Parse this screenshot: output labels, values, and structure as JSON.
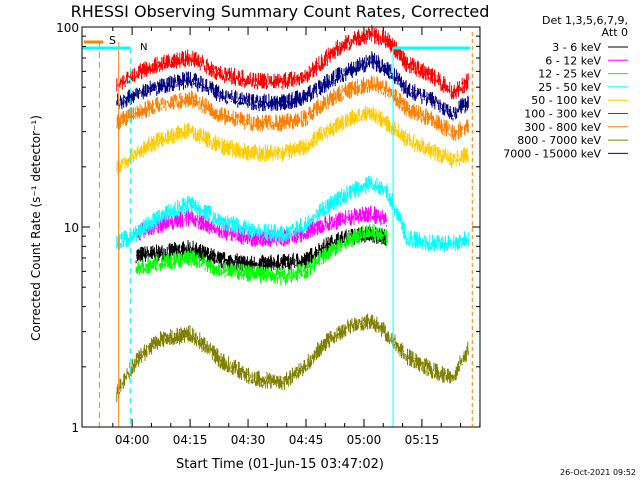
{
  "chart_data": {
    "type": "line",
    "title": "RHESSI Observing Summary Count Rates, Corrected",
    "xlabel": "Start Time (01-Jun-15 03:47:02)",
    "ylabel": "Corrected Count Rate (s⁻¹ detector⁻¹)",
    "yscale": "log",
    "ylim": [
      1,
      100
    ],
    "xlim_min": [
      0,
      103
    ],
    "x_unit": "minutes after 03:47:02",
    "xticks": [
      {
        "min": 12.97,
        "label": "04:00"
      },
      {
        "min": 27.97,
        "label": "04:15"
      },
      {
        "min": 42.97,
        "label": "04:30"
      },
      {
        "min": 57.97,
        "label": "04:45"
      },
      {
        "min": 72.97,
        "label": "05:00"
      },
      {
        "min": 87.97,
        "label": "05:15"
      }
    ],
    "yticks": [
      {
        "v": 1,
        "label": "1"
      },
      {
        "v": 10,
        "label": "10"
      },
      {
        "v": 100,
        "label": "100"
      }
    ],
    "legend": {
      "position": "right",
      "header": [
        "Det 1,3,5,6,7,9,",
        "Att 0"
      ]
    },
    "series": [
      {
        "name": "3 - 6 keV",
        "color": "#000000",
        "x": [
          14,
          20,
          28,
          36,
          44,
          52,
          58,
          62,
          66,
          70,
          75,
          79
        ],
        "y": [
          7.4,
          7.6,
          8.0,
          7.0,
          6.7,
          6.8,
          7.0,
          8.0,
          8.8,
          9.2,
          9.5,
          9.0
        ]
      },
      {
        "name": "6 - 12 keV",
        "color": "#ff00ff",
        "x": [
          14,
          20,
          28,
          36,
          44,
          52,
          58,
          62,
          66,
          70,
          75,
          79
        ],
        "y": [
          9.5,
          10.5,
          11.5,
          9.8,
          9.0,
          9.0,
          9.6,
          10.5,
          11.0,
          11.5,
          12.0,
          11.0
        ]
      },
      {
        "name": "12 - 25 keV",
        "color": "#00ff00",
        "x": [
          14,
          20,
          28,
          36,
          44,
          52,
          58,
          62,
          66,
          70,
          75,
          79
        ],
        "y": [
          6.3,
          6.8,
          7.2,
          6.3,
          6.0,
          5.8,
          6.2,
          7.2,
          8.2,
          9.0,
          9.8,
          9.0
        ]
      },
      {
        "name": "25 - 50 keV",
        "color": "#00ffff",
        "x": [
          9,
          14,
          20,
          28,
          36,
          44,
          52,
          58,
          62,
          66,
          70,
          75,
          79,
          84,
          90,
          96,
          100
        ],
        "y": [
          8.5,
          9.5,
          11.5,
          13.5,
          11.0,
          9.8,
          9.5,
          10.5,
          12.5,
          14.0,
          15.5,
          17.0,
          15.5,
          9.0,
          8.5,
          8.5,
          9.0
        ]
      },
      {
        "name": "50 - 100 keV",
        "color": "#ffcc00",
        "x": [
          9,
          14,
          20,
          28,
          36,
          44,
          52,
          58,
          62,
          66,
          70,
          75,
          79,
          84,
          90,
          96,
          100
        ],
        "y": [
          20,
          24,
          28,
          31,
          26,
          24,
          24,
          26,
          30,
          33,
          36,
          38,
          34,
          28,
          25,
          22,
          24
        ]
      },
      {
        "name": "100 - 300 keV",
        "color": "#ff0000",
        "x": [
          9,
          14,
          20,
          28,
          36,
          44,
          52,
          58,
          62,
          66,
          70,
          75,
          79,
          84,
          90,
          96,
          100
        ],
        "y": [
          53,
          60,
          67,
          72,
          60,
          55,
          55,
          58,
          68,
          80,
          88,
          95,
          88,
          67,
          60,
          48,
          55
        ]
      },
      {
        "name": "300 - 800 keV",
        "color": "#ff8000",
        "x": [
          9,
          14,
          20,
          28,
          36,
          44,
          52,
          58,
          62,
          66,
          70,
          75,
          79,
          84,
          90,
          96,
          100
        ],
        "y": [
          34,
          38,
          42,
          45,
          37,
          34,
          34,
          36,
          42,
          47,
          50,
          54,
          50,
          40,
          36,
          30,
          33
        ]
      },
      {
        "name": "800 - 7000 keV",
        "color": "#808000",
        "x": [
          9,
          14,
          20,
          28,
          36,
          44,
          52,
          58,
          62,
          66,
          70,
          75,
          79,
          84,
          90,
          96,
          100
        ],
        "y": [
          1.5,
          2.2,
          2.8,
          3.0,
          2.2,
          1.8,
          1.7,
          2.1,
          2.6,
          3.0,
          3.3,
          3.5,
          3.0,
          2.3,
          2.0,
          1.8,
          2.5
        ]
      },
      {
        "name": "7000 - 15000 keV",
        "color": "#000080",
        "x": [
          9,
          14,
          20,
          28,
          36,
          44,
          52,
          58,
          62,
          66,
          70,
          75,
          79,
          84,
          90,
          96,
          100
        ],
        "y": [
          43,
          47,
          52,
          56,
          47,
          43,
          43,
          46,
          52,
          58,
          63,
          70,
          63,
          50,
          45,
          38,
          43
        ]
      }
    ],
    "annotations": [
      {
        "text": "S",
        "color": "#ff8000"
      },
      {
        "text": "N",
        "color": "#00ffff"
      }
    ]
  },
  "timestamp": "26-Oct-2021 09:52"
}
